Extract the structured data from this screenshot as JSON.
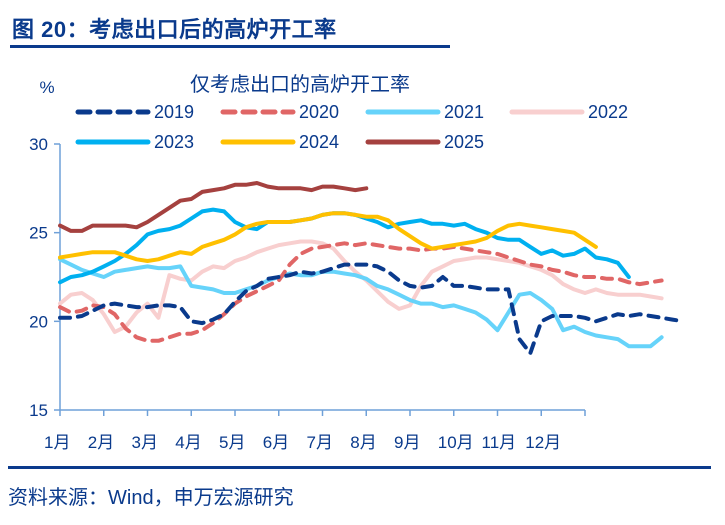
{
  "figure": {
    "title": "图 20：考虑出口后的高炉开工率",
    "source": "资料来源：Wind，申万宏源研究"
  },
  "chart_data": {
    "type": "line",
    "title": "仅考虑出口的高炉开工率",
    "ylabel": "%",
    "xlabel": "",
    "ylim": [
      15,
      30
    ],
    "yticks": [
      15,
      20,
      25,
      30
    ],
    "ytick_labels": [
      "15",
      "20",
      "25",
      "30"
    ],
    "categories": [
      "1月",
      "2月",
      "3月",
      "4月",
      "5月",
      "6月",
      "7月",
      "8月",
      "9月",
      "10月",
      "11月",
      "12月"
    ],
    "points_per_year": 48,
    "grid": false,
    "legend_position": "top",
    "series": [
      {
        "name": "2019",
        "style": "dashed",
        "color": "#0a3a8c",
        "values": [
          20.2,
          20.2,
          20.3,
          20.6,
          20.9,
          21.0,
          20.9,
          20.8,
          20.8,
          20.9,
          20.9,
          20.8,
          20.0,
          19.9,
          20.1,
          20.4,
          21.1,
          21.7,
          22.0,
          22.4,
          22.5,
          22.6,
          22.8,
          22.7,
          22.8,
          23.0,
          23.2,
          23.2,
          23.2,
          23.1,
          22.8,
          22.3,
          22.0,
          21.9,
          22.0,
          22.5,
          22.0,
          22.0,
          21.9,
          21.8,
          21.8,
          21.8,
          19.0,
          18.2,
          20.0,
          20.3,
          20.3,
          20.3,
          20.2,
          20.0,
          20.2,
          20.4,
          20.3,
          20.4,
          20.3,
          20.2,
          20.1,
          20.0
        ]
      },
      {
        "name": "2020",
        "style": "dashed",
        "color": "#e06666",
        "values": [
          20.8,
          20.5,
          20.6,
          20.9,
          20.8,
          20.4,
          19.6,
          19.1,
          18.9,
          18.9,
          19.1,
          19.3,
          19.3,
          19.5,
          19.9,
          20.4,
          21.0,
          21.4,
          21.7,
          22.0,
          22.3,
          23.2,
          23.8,
          24.1,
          24.2,
          24.3,
          24.4,
          24.3,
          24.4,
          24.3,
          24.2,
          24.1,
          24.1,
          24.0,
          24.1,
          24.1,
          24.2,
          24.1,
          24.0,
          23.9,
          23.8,
          23.6,
          23.4,
          23.2,
          23.1,
          22.9,
          22.8,
          22.6,
          22.5,
          22.5,
          22.4,
          22.4,
          22.2,
          22.1,
          22.2,
          22.3
        ]
      },
      {
        "name": "2021",
        "style": "solid",
        "color": "#66d3fa",
        "values": [
          23.5,
          23.2,
          22.9,
          22.7,
          22.5,
          22.8,
          22.9,
          23.0,
          23.1,
          23.0,
          23.0,
          23.1,
          22.0,
          21.9,
          21.8,
          21.6,
          21.6,
          21.8,
          22.0,
          22.3,
          22.5,
          22.7,
          22.6,
          22.6,
          22.8,
          22.8,
          22.7,
          22.6,
          22.4,
          22.0,
          21.8,
          21.5,
          21.2,
          21.0,
          21.0,
          20.8,
          20.9,
          20.7,
          20.5,
          20.1,
          19.5,
          20.5,
          21.5,
          21.6,
          21.2,
          20.7,
          19.5,
          19.7,
          19.4,
          19.2,
          19.1,
          19.0,
          18.6,
          18.6,
          18.6,
          19.1
        ]
      },
      {
        "name": "2022",
        "style": "solid",
        "color": "#f8cfcf",
        "values": [
          21.0,
          21.5,
          21.6,
          21.2,
          20.4,
          19.4,
          19.7,
          20.5,
          21.0,
          20.2,
          22.6,
          22.4,
          22.3,
          22.8,
          23.1,
          23.0,
          23.4,
          23.6,
          23.9,
          24.1,
          24.3,
          24.4,
          24.5,
          24.5,
          24.4,
          24.1,
          23.4,
          22.8,
          22.3,
          21.7,
          21.1,
          20.7,
          20.9,
          22.0,
          22.8,
          23.1,
          23.4,
          23.5,
          23.6,
          23.6,
          23.5,
          23.4,
          23.3,
          23.1,
          22.9,
          22.6,
          22.1,
          21.8,
          21.6,
          21.8,
          21.6,
          21.5,
          21.5,
          21.5,
          21.4,
          21.3
        ]
      },
      {
        "name": "2023",
        "style": "solid",
        "color": "#00b0f0",
        "values": [
          22.2,
          22.5,
          22.6,
          22.8,
          23.1,
          23.4,
          23.8,
          24.3,
          24.9,
          25.1,
          25.2,
          25.4,
          25.8,
          26.2,
          26.3,
          26.2,
          25.6,
          25.3,
          25.2,
          25.6,
          25.6,
          25.6,
          25.7,
          25.8,
          26.0,
          26.1,
          26.1,
          26.0,
          25.8,
          25.6,
          25.3,
          25.5,
          25.6,
          25.7,
          25.5,
          25.5,
          25.4,
          25.5,
          25.2,
          25.0,
          24.7,
          24.6,
          24.6,
          24.2,
          23.8,
          24.0,
          23.7,
          23.8,
          24.1,
          23.6,
          23.5,
          23.3,
          22.5
        ]
      },
      {
        "name": "2024",
        "style": "solid",
        "color": "#ffc000",
        "values": [
          23.6,
          23.7,
          23.8,
          23.9,
          23.9,
          23.9,
          23.7,
          23.5,
          23.4,
          23.5,
          23.7,
          23.9,
          23.8,
          24.2,
          24.4,
          24.6,
          24.9,
          25.3,
          25.5,
          25.6,
          25.6,
          25.6,
          25.7,
          25.8,
          26.0,
          26.1,
          26.1,
          26.0,
          25.9,
          25.9,
          25.7,
          25.2,
          24.8,
          24.4,
          24.1,
          24.2,
          24.3,
          24.4,
          24.5,
          24.7,
          25.1,
          25.4,
          25.5,
          25.4,
          25.3,
          25.2,
          25.1,
          25.0,
          24.6,
          24.2
        ]
      },
      {
        "name": "2025",
        "style": "solid",
        "color": "#a5413f",
        "values": [
          25.4,
          25.1,
          25.1,
          25.4,
          25.4,
          25.4,
          25.4,
          25.3,
          25.6,
          26.0,
          26.4,
          26.8,
          26.9,
          27.3,
          27.4,
          27.5,
          27.7,
          27.7,
          27.8,
          27.6,
          27.5,
          27.5,
          27.5,
          27.4,
          27.6,
          27.6,
          27.5,
          27.4,
          27.5
        ]
      }
    ]
  }
}
